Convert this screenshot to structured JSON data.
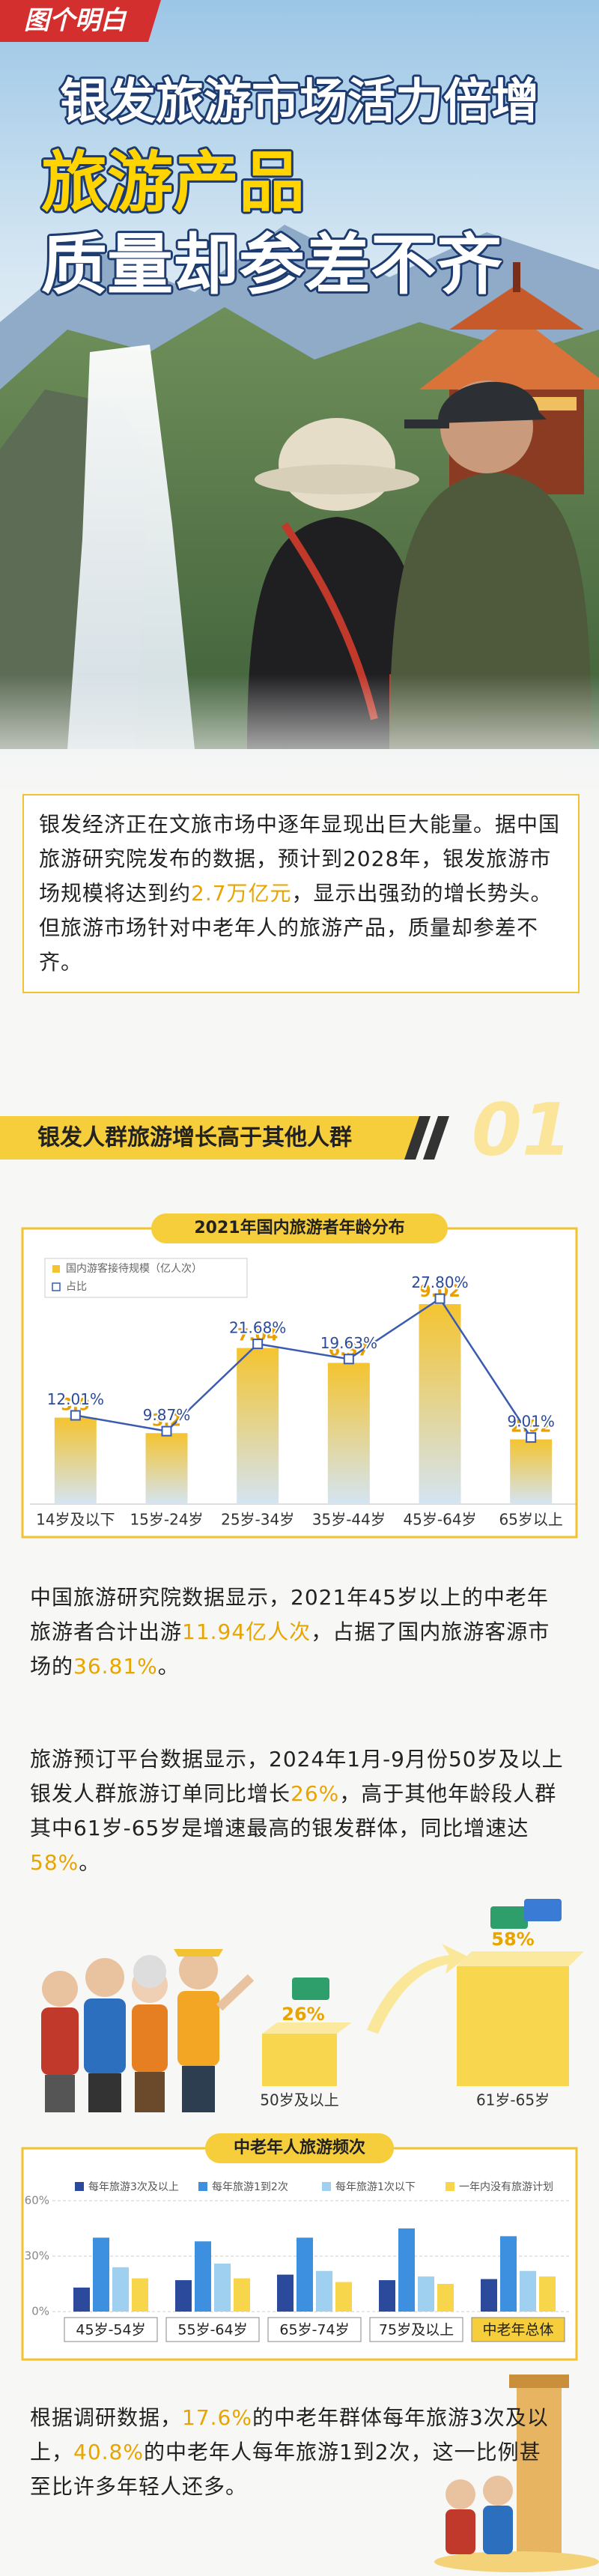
{
  "header": {
    "logo": "图个明白",
    "title_lines": [
      "银发旅游市场活力倍增",
      "旅游产品",
      "质量却参差不齐"
    ]
  },
  "intro": {
    "parts": [
      "银发经济正在文旅市场中逐年显现出巨大能量。据中国旅游研究院发布的数据，预计到2028年，银发旅游市场规模将达到约",
      "2.7万亿元",
      "，显示出强劲的增长势头。但旅游市场针对中老年人的旅游产品，质量却参差不齐。"
    ]
  },
  "section": {
    "title": "银发人群旅游增长高于其他人群",
    "number": "01"
  },
  "chart_data": [
    {
      "type": "bar",
      "title": "2021年国内旅游者年龄分布",
      "categories": [
        "14岁及以下",
        "15岁-24岁",
        "25岁-34岁",
        "35岁-44岁",
        "45岁-64岁",
        "65岁以上"
      ],
      "series": [
        {
          "name": "国内游客接待规模（亿人次）",
          "color": "#f4c430",
          "values": [
            3.9,
            3.2,
            7.04,
            6.37,
            9.02,
            2.92
          ]
        },
        {
          "name": "占比",
          "color": "#3a5bb0",
          "type": "line",
          "axis": "y2",
          "values": [
            12.01,
            9.87,
            21.68,
            19.63,
            27.8,
            9.01
          ],
          "value_labels": [
            "12.01%",
            "9.87%",
            "21.68%",
            "19.63%",
            "27.80%",
            "9.01%"
          ]
        }
      ],
      "ylim": [
        0,
        10
      ],
      "y2lim": [
        0,
        30
      ]
    },
    {
      "type": "bar",
      "title": "中老年人旅游频次",
      "categories": [
        "45岁-54岁",
        "55岁-64岁",
        "65岁-74岁",
        "75岁及以上",
        "中老年总体"
      ],
      "series": [
        {
          "name": "每年旅游3次及以上",
          "color": "#2b4a9b",
          "values": [
            13,
            17,
            20,
            17,
            17.6
          ]
        },
        {
          "name": "每年旅游1到2次",
          "color": "#3d8fe0",
          "values": [
            40,
            38,
            40,
            45,
            40.8
          ]
        },
        {
          "name": "每年旅游1次以下",
          "color": "#9fd0ef",
          "values": [
            24,
            26,
            22,
            19,
            22
          ]
        },
        {
          "name": "一年内没有旅游计划",
          "color": "#f7d64c",
          "values": [
            18,
            18,
            16,
            15,
            19
          ]
        }
      ],
      "ylim": [
        0,
        60
      ],
      "yticks": [
        {
          "value": 0,
          "label": "0%"
        },
        {
          "value": 30,
          "label": "30%"
        },
        {
          "value": 60,
          "label": "60%"
        }
      ],
      "grid": true
    }
  ],
  "paragraphs": [
    {
      "parts": [
        "中国旅游研究院数据显示，2021年45岁以上的中老年旅游者合计出游",
        "11.94亿人次",
        "，占据了国内旅游客源市场的",
        "36.81%",
        "。"
      ]
    },
    {
      "parts": [
        "旅游预订平台数据显示，2024年1月-9月份50岁及以上银发人群旅游订单同比增长",
        "26%",
        "，高于其他年龄段人群其中61岁-65岁是增速最高的银发群体，同比增速达",
        "58%",
        "。"
      ]
    },
    {
      "parts": [
        "根据调研数据，",
        "17.6%",
        "的中老年群体每年旅游3次及以上，",
        "40.8%",
        "的中老年人每年旅游1到2次，这一比例甚至比许多年轻人还多。"
      ]
    }
  ],
  "comparison": {
    "items": [
      {
        "label": "50岁及以上",
        "value": "26%"
      },
      {
        "label": "61岁-65岁",
        "value": "58%"
      }
    ]
  }
}
